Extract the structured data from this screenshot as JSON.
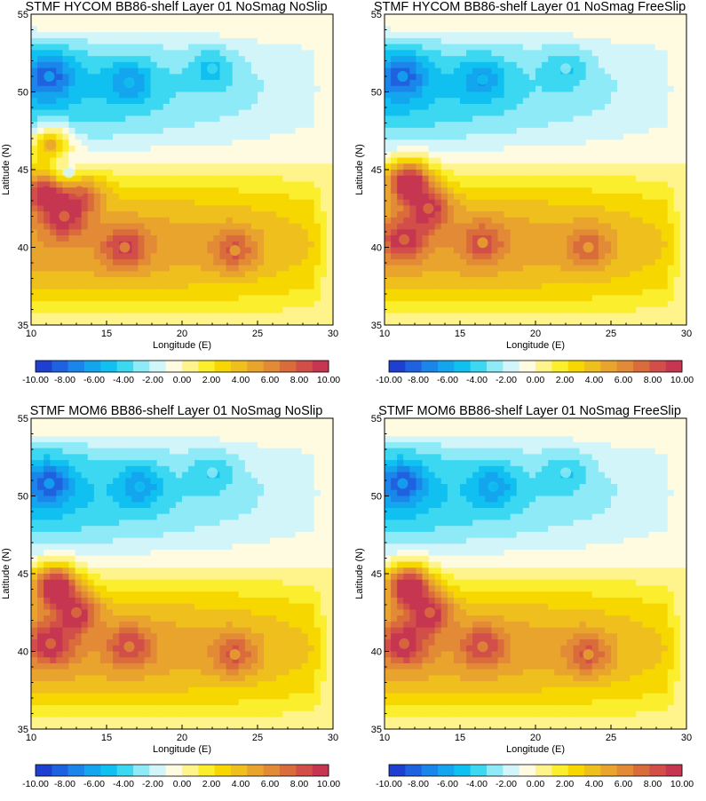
{
  "chart_data": [
    {
      "type": "heatmap",
      "title": "STMF HYCOM BB86-shelf Layer 01 NoSmag NoSlip",
      "xlabel": "Longitude (E)",
      "ylabel": "Latitude (N)",
      "xlim": [
        10,
        30
      ],
      "ylim": [
        35,
        55
      ],
      "xticks": [
        "10",
        "15",
        "20",
        "25",
        "30"
      ],
      "yticks": [
        "35",
        "40",
        "45",
        "50",
        "55"
      ],
      "pos_features": [
        {
          "lon": 11.0,
          "lat": 43.6,
          "value": 9.0
        },
        {
          "lon": 11.3,
          "lat": 46.6,
          "value": 5.0
        },
        {
          "lon": 12.2,
          "lat": 42.0,
          "value": 7.5
        },
        {
          "lon": 13.2,
          "lat": 43.6,
          "value": 7.0
        },
        {
          "lon": 16.2,
          "lat": 40.0,
          "value": 6.5
        },
        {
          "lon": 23.5,
          "lat": 39.8,
          "value": 5.5
        }
      ],
      "neg_features": [
        {
          "lon": 11.2,
          "lat": 51.0,
          "value": -6.0
        },
        {
          "lon": 16.5,
          "lat": 50.6,
          "value": -4.5
        },
        {
          "lon": 22.0,
          "lat": 51.5,
          "value": -3.5
        },
        {
          "lon": 12.5,
          "lat": 44.8,
          "value": -2.0
        }
      ]
    },
    {
      "type": "heatmap",
      "title": "STMF HYCOM BB86-shelf Layer 01 NoSmag FreeSlip",
      "xlabel": "Longitude (E)",
      "ylabel": "Latitude (N)",
      "xlim": [
        10,
        30
      ],
      "ylim": [
        35,
        55
      ],
      "xticks": [
        "10",
        "15",
        "20",
        "25",
        "30"
      ],
      "yticks": [
        "35",
        "40",
        "45",
        "50",
        "55"
      ],
      "pos_features": [
        {
          "lon": 11.6,
          "lat": 44.2,
          "value": 10.0
        },
        {
          "lon": 12.9,
          "lat": 42.5,
          "value": 7.5
        },
        {
          "lon": 11.3,
          "lat": 40.5,
          "value": 7.0
        },
        {
          "lon": 16.5,
          "lat": 40.3,
          "value": 5.5
        },
        {
          "lon": 23.5,
          "lat": 40.0,
          "value": 5.0
        }
      ],
      "neg_features": [
        {
          "lon": 11.2,
          "lat": 51.0,
          "value": -6.0
        },
        {
          "lon": 16.5,
          "lat": 50.8,
          "value": -4.5
        },
        {
          "lon": 22.0,
          "lat": 51.5,
          "value": -3.0
        }
      ]
    },
    {
      "type": "heatmap",
      "title": "STMF MOM6 BB86-shelf Layer 01 NoSmag NoSlip",
      "xlabel": "Longitude (E)",
      "ylabel": "Latitude (N)",
      "xlim": [
        10,
        30
      ],
      "ylim": [
        35,
        55
      ],
      "xticks": [
        "10",
        "15",
        "20",
        "25",
        "30"
      ],
      "yticks": [
        "35",
        "40",
        "45",
        "50",
        "55"
      ],
      "pos_features": [
        {
          "lon": 11.6,
          "lat": 44.2,
          "value": 10.0
        },
        {
          "lon": 13.0,
          "lat": 42.5,
          "value": 7.5
        },
        {
          "lon": 11.3,
          "lat": 40.5,
          "value": 7.5
        },
        {
          "lon": 16.5,
          "lat": 40.3,
          "value": 6.0
        },
        {
          "lon": 23.5,
          "lat": 39.8,
          "value": 5.5
        }
      ],
      "neg_features": [
        {
          "lon": 11.2,
          "lat": 50.8,
          "value": -6.0
        },
        {
          "lon": 17.2,
          "lat": 50.6,
          "value": -4.5
        },
        {
          "lon": 22.0,
          "lat": 51.5,
          "value": -3.0
        }
      ]
    },
    {
      "type": "heatmap",
      "title": "STMF MOM6 BB86-shelf Layer 01 NoSmag FreeSlip",
      "xlabel": "Longitude (E)",
      "ylabel": "Latitude (N)",
      "xlim": [
        10,
        30
      ],
      "ylim": [
        35,
        55
      ],
      "xticks": [
        "10",
        "15",
        "20",
        "25",
        "30"
      ],
      "yticks": [
        "35",
        "40",
        "45",
        "50",
        "55"
      ],
      "pos_features": [
        {
          "lon": 11.6,
          "lat": 44.2,
          "value": 10.0
        },
        {
          "lon": 13.0,
          "lat": 42.5,
          "value": 7.5
        },
        {
          "lon": 11.3,
          "lat": 40.5,
          "value": 7.5
        },
        {
          "lon": 16.5,
          "lat": 40.3,
          "value": 6.0
        },
        {
          "lon": 23.5,
          "lat": 39.8,
          "value": 5.5
        }
      ],
      "neg_features": [
        {
          "lon": 11.2,
          "lat": 50.8,
          "value": -6.0
        },
        {
          "lon": 17.2,
          "lat": 50.6,
          "value": -4.5
        },
        {
          "lon": 22.0,
          "lat": 51.5,
          "value": -3.0
        }
      ]
    }
  ],
  "colorbar": {
    "min": -10,
    "max": 10,
    "labels": [
      "-10.00",
      "-8.00",
      "-6.00",
      "-4.00",
      "-2.00",
      "0.00",
      "2.00",
      "4.00",
      "6.00",
      "8.00",
      "10.00"
    ],
    "colors": [
      "#1f3fd0",
      "#1f62e0",
      "#1a86ea",
      "#13a6ee",
      "#10c0f0",
      "#3cd8f2",
      "#8deaf6",
      "#d2f5fa",
      "#fffbe0",
      "#fff48c",
      "#fbee2c",
      "#f6d800",
      "#efbf1e",
      "#e8a42c",
      "#e28a36",
      "#da6c3c",
      "#d24e48",
      "#c63650"
    ]
  }
}
